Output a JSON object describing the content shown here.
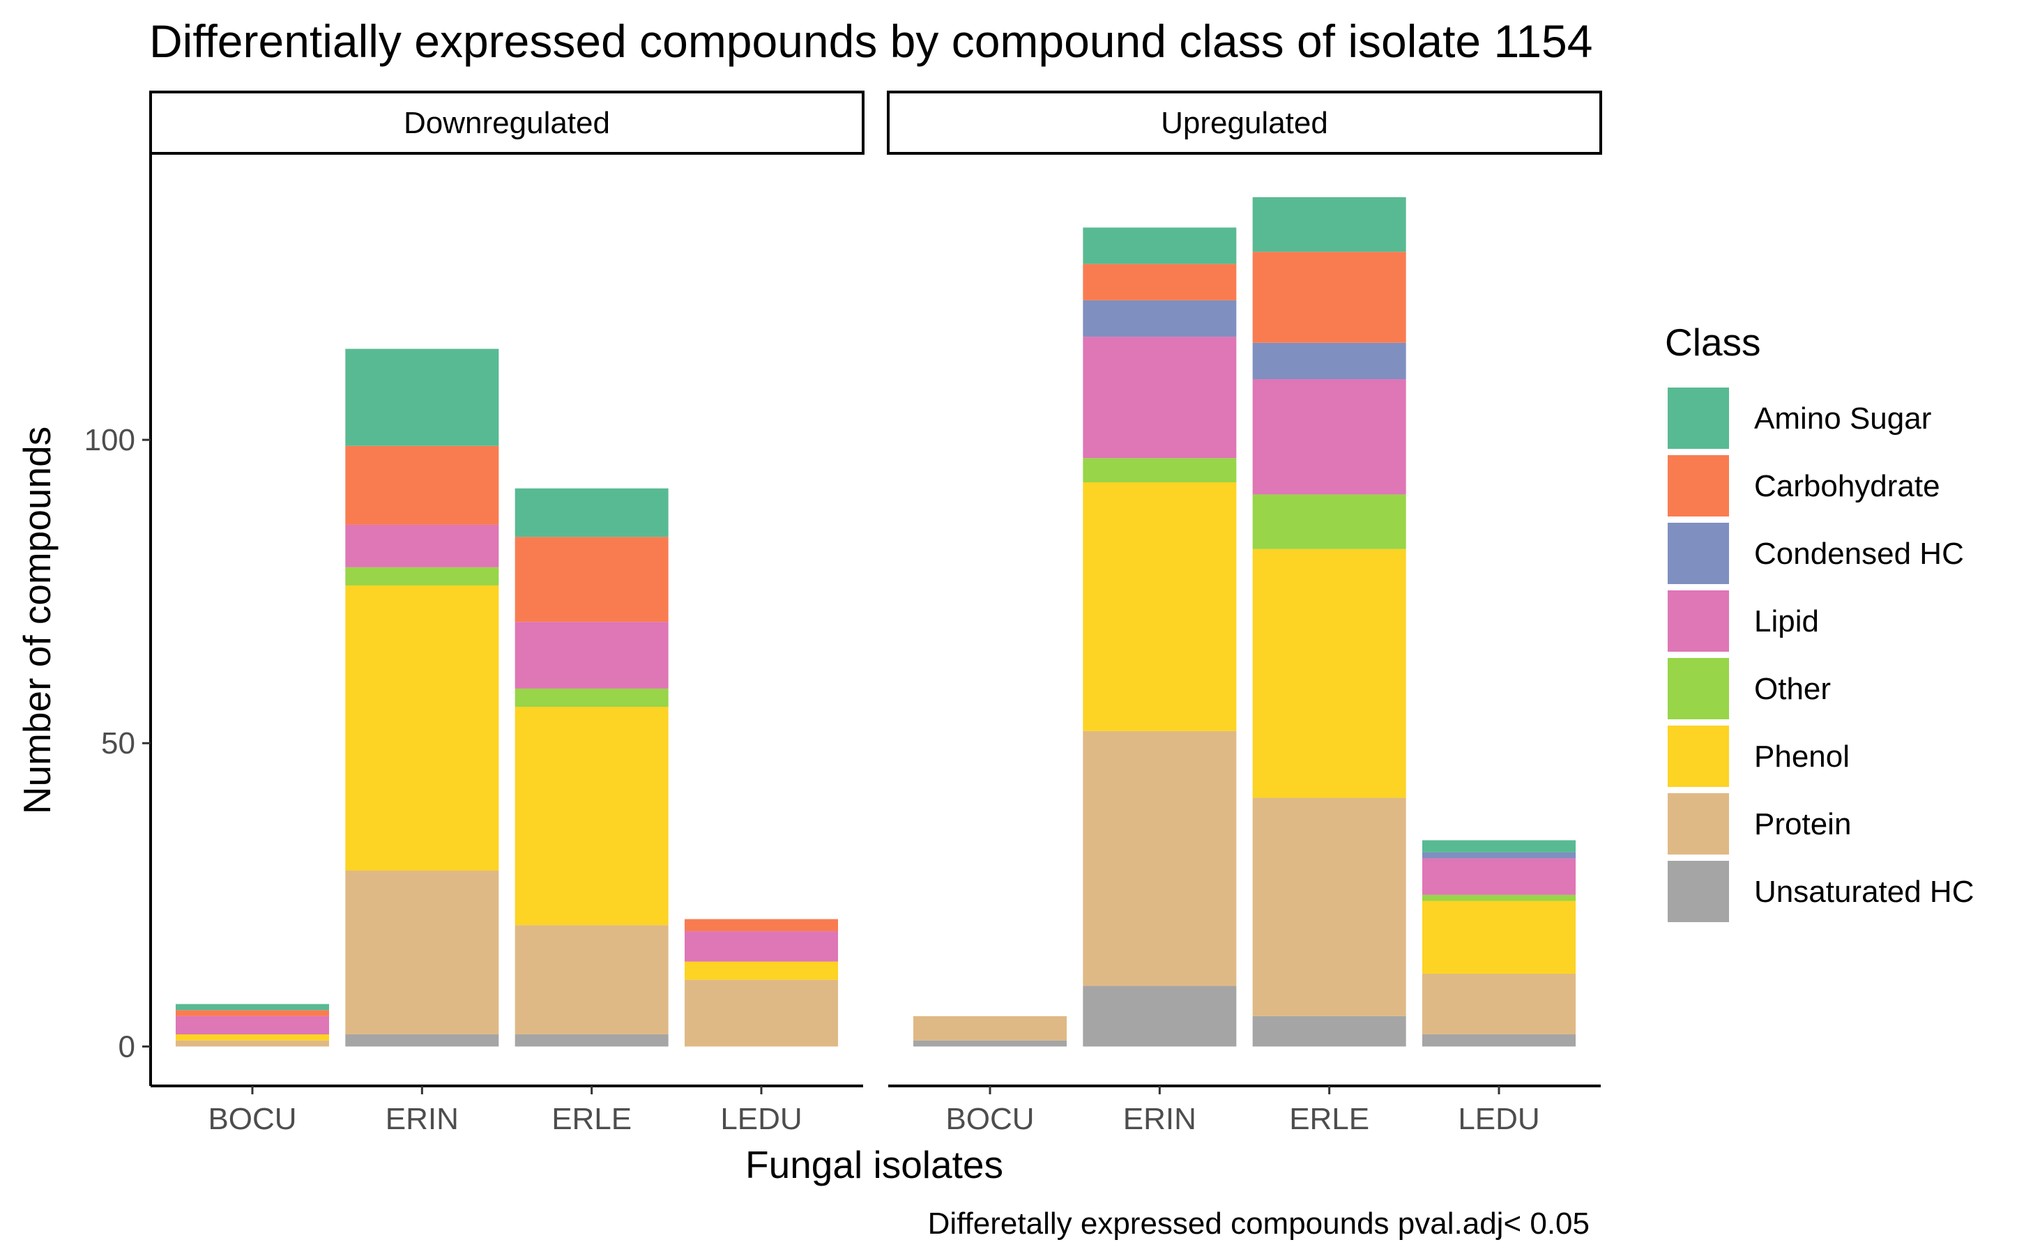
{
  "chart_data": {
    "type": "bar",
    "stacked": true,
    "title": "Differentially expressed compounds by compound class of isolate 1154",
    "xlabel": "Fungal isolates",
    "ylabel": "Number of compounds",
    "caption": "Differetally expressed compounds pval.adj< 0.05",
    "ylim": [
      -6.5,
      147
    ],
    "yticks": [
      0,
      50,
      100
    ],
    "grid": false,
    "legend": {
      "title": "Class",
      "position": "right",
      "entries": [
        {
          "name": "Amino Sugar",
          "color": "#58BA93"
        },
        {
          "name": "Carbohydrate",
          "color": "#F97C51"
        },
        {
          "name": "Condensed HC",
          "color": "#7F8FC0"
        },
        {
          "name": "Lipid",
          "color": "#DF76B6"
        },
        {
          "name": "Other",
          "color": "#98D548"
        },
        {
          "name": "Phenol",
          "color": "#FDD324"
        },
        {
          "name": "Protein",
          "color": "#DFB985"
        },
        {
          "name": "Unsaturated HC",
          "color": "#A5A5A5"
        }
      ]
    },
    "stack_order_bottom_to_top": [
      "Unsaturated HC",
      "Protein",
      "Phenol",
      "Other",
      "Lipid",
      "Condensed HC",
      "Carbohydrate",
      "Amino Sugar"
    ],
    "categories": [
      "BOCU",
      "ERIN",
      "ERLE",
      "LEDU"
    ],
    "panels": [
      {
        "label": "Downregulated",
        "bars": [
          {
            "category": "BOCU",
            "values": {
              "Unsaturated HC": 0,
              "Protein": 1,
              "Phenol": 1,
              "Other": 0,
              "Lipid": 3,
              "Condensed HC": 0,
              "Carbohydrate": 1,
              "Amino Sugar": 1
            }
          },
          {
            "category": "ERIN",
            "values": {
              "Unsaturated HC": 2,
              "Protein": 27,
              "Phenol": 47,
              "Other": 3,
              "Lipid": 7,
              "Condensed HC": 0,
              "Carbohydrate": 13,
              "Amino Sugar": 16
            }
          },
          {
            "category": "ERLE",
            "values": {
              "Unsaturated HC": 2,
              "Protein": 18,
              "Phenol": 36,
              "Other": 3,
              "Lipid": 11,
              "Condensed HC": 0,
              "Carbohydrate": 14,
              "Amino Sugar": 8
            }
          },
          {
            "category": "LEDU",
            "values": {
              "Unsaturated HC": 0,
              "Protein": 11,
              "Phenol": 3,
              "Other": 0,
              "Lipid": 5,
              "Condensed HC": 0,
              "Carbohydrate": 2,
              "Amino Sugar": 0
            }
          }
        ]
      },
      {
        "label": "Upregulated",
        "bars": [
          {
            "category": "BOCU",
            "values": {
              "Unsaturated HC": 1,
              "Protein": 4,
              "Phenol": 0,
              "Other": 0,
              "Lipid": 0,
              "Condensed HC": 0,
              "Carbohydrate": 0,
              "Amino Sugar": 0
            }
          },
          {
            "category": "ERIN",
            "values": {
              "Unsaturated HC": 10,
              "Protein": 42,
              "Phenol": 41,
              "Other": 4,
              "Lipid": 20,
              "Condensed HC": 6,
              "Carbohydrate": 6,
              "Amino Sugar": 6
            }
          },
          {
            "category": "ERLE",
            "values": {
              "Unsaturated HC": 5,
              "Protein": 36,
              "Phenol": 41,
              "Other": 9,
              "Lipid": 19,
              "Condensed HC": 6,
              "Carbohydrate": 15,
              "Amino Sugar": 9
            }
          },
          {
            "category": "LEDU",
            "values": {
              "Unsaturated HC": 2,
              "Protein": 10,
              "Phenol": 12,
              "Other": 1,
              "Lipid": 6,
              "Condensed HC": 1,
              "Carbohydrate": 0,
              "Amino Sugar": 2
            }
          }
        ]
      }
    ]
  }
}
